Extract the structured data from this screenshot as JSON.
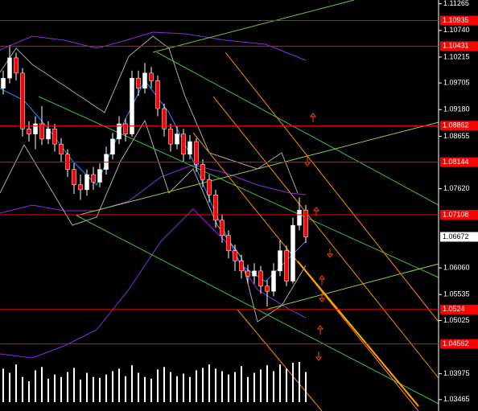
{
  "chart_data": {
    "type": "candlestick",
    "ylim": [
      1.0324,
      1.1134
    ],
    "yticks": [
      1.11265,
      {
        "value": 1.1074,
        "label": "1.10740"
      },
      1.10215,
      1.09705,
      {
        "value": 1.0918,
        "label": "1.09180"
      },
      1.08655,
      {
        "value": 1.0762,
        "label": "1.07620"
      },
      {
        "value": 1.0606,
        "label": "1.06060"
      },
      1.05535,
      1.05025,
      1.03975,
      1.03465
    ],
    "levels": [
      1.10935,
      1.10431,
      1.08862,
      1.08144,
      1.07108,
      1.0524,
      1.04562
    ],
    "level_color": "#ff0000",
    "current_price": 1.06672,
    "up_color": "#ffffff",
    "down_color": "#ff0000",
    "candles": [
      [
        1.096,
        1.0995,
        1.0948,
        1.098
      ],
      [
        1.098,
        1.1045,
        1.097,
        1.102
      ],
      [
        1.102,
        1.103,
        1.0975,
        1.099
      ],
      [
        1.099,
        1.1,
        1.0865,
        1.088
      ],
      [
        1.088,
        1.0895,
        1.0855,
        1.087
      ],
      [
        1.087,
        1.0905,
        1.084,
        1.089
      ],
      [
        1.089,
        1.0925,
        1.0848,
        1.086
      ],
      [
        1.086,
        1.0895,
        1.085,
        1.088
      ],
      [
        1.088,
        1.089,
        1.0835,
        1.085
      ],
      [
        1.085,
        1.0862,
        1.0815,
        1.083
      ],
      [
        1.083,
        1.084,
        1.0785,
        1.08
      ],
      [
        1.08,
        1.0812,
        1.0752,
        1.077
      ],
      [
        1.077,
        1.079,
        1.074,
        1.076
      ],
      [
        1.076,
        1.08,
        1.0748,
        1.079
      ],
      [
        1.079,
        1.0805,
        1.076,
        1.0775
      ],
      [
        1.0775,
        1.0812,
        1.0765,
        1.08
      ],
      [
        1.08,
        1.0845,
        1.079,
        1.083
      ],
      [
        1.083,
        1.0872,
        1.082,
        1.086
      ],
      [
        1.086,
        1.0905,
        1.085,
        1.089
      ],
      [
        1.089,
        1.09,
        1.0855,
        1.087
      ],
      [
        1.087,
        1.0995,
        1.0865,
        1.098
      ],
      [
        1.098,
        1.0995,
        1.0945,
        1.096
      ],
      [
        1.096,
        1.101,
        1.095,
        1.099
      ],
      [
        1.099,
        1.1002,
        1.096,
        1.0975
      ],
      [
        1.0975,
        1.0985,
        1.0905,
        1.092
      ],
      [
        1.092,
        1.093,
        1.0865,
        1.088
      ],
      [
        1.088,
        1.089,
        1.0835,
        1.085
      ],
      [
        1.085,
        1.0885,
        1.084,
        1.087
      ],
      [
        1.087,
        1.088,
        1.0815,
        1.083
      ],
      [
        1.083,
        1.0868,
        1.082,
        1.0855
      ],
      [
        1.0855,
        1.0862,
        1.0795,
        1.081
      ],
      [
        1.081,
        1.082,
        1.0765,
        1.078
      ],
      [
        1.078,
        1.079,
        1.0735,
        1.075
      ],
      [
        1.075,
        1.076,
        1.0685,
        1.07
      ],
      [
        1.07,
        1.0712,
        1.0655,
        1.067
      ],
      [
        1.067,
        1.068,
        1.0625,
        1.064
      ],
      [
        1.064,
        1.0652,
        1.06,
        1.062
      ],
      [
        1.062,
        1.0632,
        1.0585,
        1.06
      ],
      [
        1.06,
        1.0612,
        1.0575,
        1.059
      ],
      [
        1.059,
        1.0615,
        1.0575,
        1.06
      ],
      [
        1.06,
        1.061,
        1.0555,
        1.057
      ],
      [
        1.057,
        1.0582,
        1.053,
        1.056
      ],
      [
        1.056,
        1.0615,
        1.055,
        1.06
      ],
      [
        1.06,
        1.066,
        1.059,
        1.064
      ],
      [
        1.064,
        1.065,
        1.057,
        1.058
      ],
      [
        1.058,
        1.0705,
        1.0575,
        1.069
      ],
      [
        1.069,
        1.0745,
        1.068,
        1.072
      ],
      [
        1.072,
        1.073,
        1.0655,
        1.0667
      ]
    ],
    "volume": [
      40,
      35,
      45,
      30,
      25,
      38,
      42,
      28,
      33,
      30,
      36,
      41,
      27,
      35,
      30,
      29,
      33,
      37,
      40,
      31,
      44,
      35,
      30,
      28,
      39,
      42,
      36,
      31,
      34,
      30,
      38,
      41,
      45,
      40,
      37,
      33,
      36,
      43,
      30,
      35,
      39,
      44,
      37,
      45,
      40,
      47,
      48,
      36
    ]
  }
}
